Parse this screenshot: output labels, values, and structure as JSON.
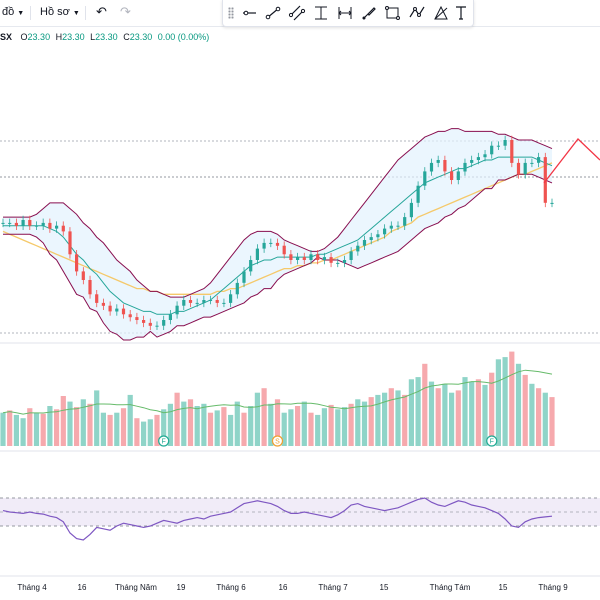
{
  "toolbar": {
    "timeframe_label": "đồ",
    "profile_label": "Hồ sơ"
  },
  "drawing_tools": [
    {
      "name": "horizontal-ray-icon"
    },
    {
      "name": "trend-line-icon"
    },
    {
      "name": "parallel-channel-icon"
    },
    {
      "name": "fib-retracement-icon"
    },
    {
      "name": "long-short-position-icon"
    },
    {
      "name": "brush-icon"
    },
    {
      "name": "polyline-icon"
    },
    {
      "name": "pattern-icon"
    },
    {
      "name": "shapes-icon"
    },
    {
      "name": "text-icon"
    }
  ],
  "legend": {
    "symbol": "SX",
    "o_label": "O",
    "o_value": "23.30",
    "h_label": "H",
    "h_value": "23.30",
    "l_label": "L",
    "l_value": "23.30",
    "c_label": "C",
    "c_value": "23.30",
    "change": "0.00 (0.00%)"
  },
  "colors": {
    "up": "#089981",
    "down": "#f23645",
    "up_candle": "#26a69a",
    "down_candle": "#ef5350",
    "volume_up": "#8fd4c8",
    "volume_down": "#f6a9ad",
    "bb_basis": "#2196f3",
    "bb_band": "#880e4f",
    "bb_fill": "#e3f2fd",
    "ma_slow": "#f5c96a",
    "rsi_line": "#7e57c2",
    "rsi_fill": "#ede7f6"
  },
  "chart_data": {
    "type": "line",
    "title": "",
    "xlabel": "",
    "ylabel": "",
    "x_tick_labels": [
      "Tháng 4",
      "16",
      "Tháng Năm",
      "19",
      "Tháng 6",
      "16",
      "Tháng 7",
      "15",
      "Tháng Tám",
      "15",
      "Tháng 9"
    ],
    "price": {
      "close": [
        22.6,
        22.6,
        22.5,
        22.7,
        22.5,
        22.5,
        22.6,
        22.4,
        22.5,
        22.3,
        21.5,
        20.9,
        20.6,
        20.1,
        19.8,
        19.7,
        19.5,
        19.6,
        19.4,
        19.3,
        19.2,
        19.1,
        19.0,
        19.0,
        19.2,
        19.4,
        19.7,
        19.9,
        19.8,
        19.8,
        19.9,
        19.9,
        19.8,
        19.8,
        20.1,
        20.5,
        20.9,
        21.3,
        21.7,
        21.9,
        21.9,
        21.8,
        21.5,
        21.3,
        21.4,
        21.3,
        21.5,
        21.3,
        21.4,
        21.2,
        21.2,
        21.3,
        21.6,
        21.8,
        22.0,
        22.1,
        22.2,
        22.4,
        22.5,
        22.5,
        22.8,
        23.3,
        23.9,
        24.4,
        24.7,
        24.8,
        24.4,
        24.1,
        24.4,
        24.7,
        24.8,
        24.9,
        25.0,
        25.3,
        25.3,
        25.5,
        24.7,
        24.3,
        24.7,
        24.7,
        24.9,
        23.3,
        23.3
      ],
      "open": [
        22.6,
        22.6,
        22.6,
        22.5,
        22.7,
        22.5,
        22.5,
        22.6,
        22.4,
        22.5,
        22.3,
        21.5,
        20.9,
        20.6,
        20.1,
        19.8,
        19.7,
        19.5,
        19.6,
        19.4,
        19.3,
        19.2,
        19.1,
        19.0,
        19.0,
        19.2,
        19.4,
        19.7,
        19.9,
        19.8,
        19.8,
        19.9,
        19.9,
        19.8,
        19.8,
        20.1,
        20.5,
        20.9,
        21.3,
        21.7,
        21.9,
        21.9,
        21.8,
        21.5,
        21.3,
        21.4,
        21.3,
        21.5,
        21.3,
        21.4,
        21.2,
        21.2,
        21.3,
        21.6,
        21.8,
        22.0,
        22.1,
        22.2,
        22.4,
        22.5,
        22.5,
        22.8,
        23.3,
        23.9,
        24.4,
        24.7,
        24.8,
        24.4,
        24.1,
        24.4,
        24.7,
        24.8,
        24.9,
        25.0,
        25.3,
        25.3,
        25.5,
        24.7,
        24.3,
        24.7,
        24.7,
        24.9,
        23.3
      ],
      "bb_upper": [
        22.8,
        22.8,
        22.8,
        22.8,
        22.8,
        22.9,
        23.1,
        23.3,
        23.3,
        23.3,
        23.1,
        22.9,
        22.6,
        22.4,
        22.1,
        21.9,
        21.6,
        21.3,
        21.1,
        20.9,
        20.6,
        20.4,
        20.2,
        20.2,
        20.1,
        20.0,
        20.0,
        20.0,
        20.1,
        20.2,
        20.3,
        20.5,
        20.8,
        21.1,
        21.4,
        21.7,
        22.0,
        22.2,
        22.3,
        22.3,
        22.3,
        22.2,
        22.0,
        21.9,
        21.8,
        21.7,
        21.6,
        21.6,
        21.7,
        21.9,
        22.1,
        22.4,
        22.7,
        23.0,
        23.3,
        23.6,
        23.9,
        24.2,
        24.5,
        24.8,
        25.0,
        25.2,
        25.4,
        25.6,
        25.7,
        25.8,
        25.8,
        25.9,
        25.9,
        25.8,
        25.8,
        25.8,
        25.8,
        25.8,
        25.7,
        25.7,
        25.6,
        25.5,
        25.5,
        25.5,
        25.4,
        25.3,
        25.2
      ],
      "bb_basis": [
        22.5,
        22.5,
        22.5,
        22.5,
        22.5,
        22.5,
        22.5,
        22.4,
        22.3,
        22.1,
        21.8,
        21.5,
        21.3,
        21.0,
        20.8,
        20.5,
        20.2,
        20.0,
        19.8,
        19.7,
        19.6,
        19.5,
        19.5,
        19.4,
        19.4,
        19.4,
        19.5,
        19.5,
        19.6,
        19.7,
        19.8,
        19.9,
        20.1,
        20.3,
        20.5,
        20.7,
        20.9,
        21.1,
        21.2,
        21.3,
        21.3,
        21.4,
        21.4,
        21.4,
        21.4,
        21.4,
        21.4,
        21.5,
        21.5,
        21.6,
        21.7,
        21.8,
        21.9,
        22.0,
        22.2,
        22.4,
        22.6,
        22.8,
        23.0,
        23.2,
        23.4,
        23.6,
        23.8,
        24.0,
        24.1,
        24.2,
        24.3,
        24.4,
        24.5,
        24.5,
        24.6,
        24.7,
        24.8,
        24.8,
        24.9,
        24.9,
        24.9,
        24.9,
        24.9,
        24.9,
        24.8,
        24.7,
        24.6
      ],
      "bb_lower": [
        22.2,
        22.2,
        22.2,
        22.2,
        22.2,
        22.1,
        21.9,
        21.5,
        21.3,
        20.9,
        20.5,
        20.1,
        20.0,
        19.6,
        19.5,
        19.1,
        18.8,
        18.7,
        18.5,
        18.5,
        18.6,
        18.6,
        18.8,
        18.6,
        18.7,
        18.8,
        19.0,
        19.0,
        19.1,
        19.2,
        19.3,
        19.3,
        19.4,
        19.5,
        19.6,
        19.7,
        19.8,
        20.0,
        20.1,
        20.3,
        20.3,
        20.6,
        20.8,
        20.9,
        21.0,
        21.1,
        21.2,
        21.4,
        21.3,
        21.3,
        21.3,
        21.2,
        21.1,
        21.0,
        21.1,
        21.2,
        21.3,
        21.4,
        21.5,
        21.6,
        21.8,
        22.0,
        22.2,
        22.4,
        22.5,
        22.6,
        22.8,
        22.9,
        23.1,
        23.2,
        23.4,
        23.6,
        23.8,
        23.8,
        24.1,
        24.1,
        24.2,
        24.3,
        24.3,
        24.3,
        24.2,
        24.1,
        24.0
      ],
      "ma_slow": [
        22.3,
        22.2,
        22.1,
        22.0,
        21.9,
        21.8,
        21.7,
        21.6,
        21.5,
        21.4,
        21.3,
        21.2,
        21.1,
        21.0,
        20.9,
        20.8,
        20.7,
        20.6,
        20.5,
        20.4,
        20.3,
        20.3,
        20.2,
        20.2,
        20.1,
        20.1,
        20.1,
        20.1,
        20.1,
        20.1,
        20.1,
        20.1,
        20.2,
        20.2,
        20.3,
        20.3,
        20.4,
        20.5,
        20.6,
        20.7,
        20.8,
        20.9,
        21.0,
        21.0,
        21.1,
        21.1,
        21.2,
        21.2,
        21.3,
        21.3,
        21.4,
        21.5,
        21.6,
        21.7,
        21.8,
        21.9,
        22.0,
        22.1,
        22.3,
        22.4,
        22.5,
        22.6,
        22.8,
        22.9,
        23.0,
        23.1,
        23.2,
        23.3,
        23.4,
        23.5,
        23.6,
        23.7,
        23.8,
        23.9,
        24.0,
        24.1,
        24.2,
        24.3,
        24.3,
        24.4,
        24.5,
        24.6,
        24.7
      ]
    },
    "volume": {
      "values": [
        30,
        32,
        28,
        25,
        34,
        30,
        29,
        36,
        33,
        45,
        40,
        35,
        42,
        38,
        50,
        30,
        28,
        30,
        34,
        46,
        25,
        22,
        24,
        28,
        33,
        38,
        48,
        40,
        42,
        36,
        38,
        30,
        32,
        35,
        28,
        40,
        30,
        36,
        48,
        52,
        38,
        42,
        30,
        33,
        36,
        40,
        30,
        28,
        34,
        37,
        33,
        35,
        38,
        42,
        40,
        44,
        46,
        48,
        52,
        50,
        46,
        60,
        62,
        74,
        58,
        52,
        56,
        48,
        50,
        62,
        58,
        60,
        55,
        66,
        78,
        80,
        85,
        74,
        64,
        56,
        52,
        48,
        44
      ],
      "direction_up": [
        true,
        false,
        true,
        true,
        false,
        true,
        false,
        true,
        false,
        false,
        true,
        false,
        true,
        false,
        true,
        true,
        false,
        true,
        false,
        true,
        false,
        true,
        true,
        false,
        true,
        true,
        false,
        true,
        false,
        true,
        true,
        false,
        true,
        false,
        true,
        true,
        false,
        true,
        true,
        false,
        true,
        false,
        true,
        true,
        false,
        true,
        false,
        true,
        true,
        false,
        true,
        true,
        false,
        true,
        true,
        false,
        true,
        true,
        false,
        true,
        false,
        true,
        true,
        false,
        true,
        false,
        true,
        true,
        false,
        true,
        true,
        false,
        true,
        false,
        true,
        true,
        false,
        true,
        false,
        true,
        false,
        true,
        false
      ],
      "events": [
        {
          "label": "F",
          "index": 24
        },
        {
          "label": "S",
          "index": 41
        },
        {
          "label": "F",
          "index": 73
        }
      ]
    },
    "rsi": {
      "values": [
        52,
        50,
        49,
        48,
        50,
        48,
        47,
        44,
        42,
        36,
        20,
        12,
        10,
        18,
        28,
        26,
        24,
        30,
        34,
        32,
        30,
        28,
        30,
        34,
        38,
        36,
        34,
        38,
        40,
        42,
        40,
        44,
        46,
        48,
        50,
        56,
        62,
        64,
        66,
        64,
        62,
        58,
        52,
        48,
        48,
        50,
        48,
        46,
        44,
        42,
        46,
        52,
        60,
        62,
        58,
        56,
        54,
        52,
        54,
        56,
        60,
        64,
        68,
        70,
        64,
        60,
        58,
        62,
        66,
        64,
        60,
        58,
        56,
        52,
        48,
        40,
        30,
        28,
        36,
        40,
        42,
        43,
        44
      ]
    }
  }
}
